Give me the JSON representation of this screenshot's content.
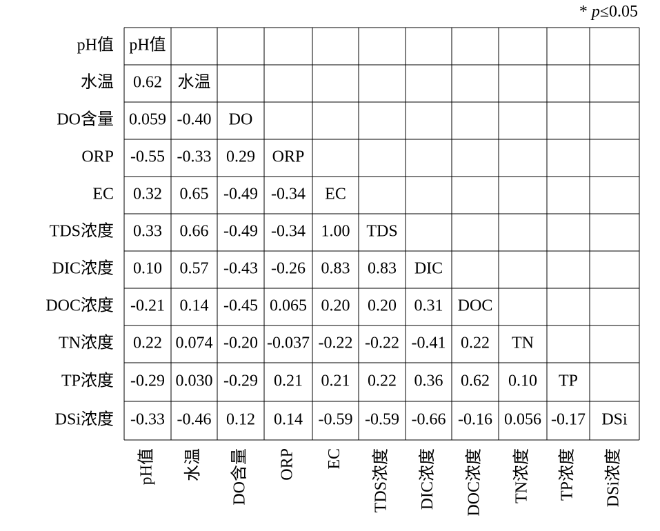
{
  "note": {
    "star": "*",
    "symbol": "p",
    "text": "≤0.05"
  },
  "table": {
    "column_labels": [
      "pH值",
      "水温",
      "DO含量",
      "ORP",
      "EC",
      "TDS浓度",
      "DIC浓度",
      "DOC浓度",
      "TN浓度",
      "TP浓度",
      "DSi浓度"
    ],
    "rows": [
      {
        "label": "pH值",
        "cells": [
          "pH值"
        ]
      },
      {
        "label": "水温",
        "cells": [
          "0.62",
          "水温"
        ]
      },
      {
        "label": "DO含量",
        "cells": [
          "0.059",
          "-0.40",
          "DO"
        ]
      },
      {
        "label": "ORP",
        "cells": [
          "-0.55",
          "-0.33",
          "0.29",
          "ORP"
        ]
      },
      {
        "label": "EC",
        "cells": [
          "0.32",
          "0.65",
          "-0.49",
          "-0.34",
          "EC"
        ]
      },
      {
        "label": "TDS浓度",
        "cells": [
          "0.33",
          "0.66",
          "-0.49",
          "-0.34",
          "1.00",
          "TDS"
        ]
      },
      {
        "label": "DIC浓度",
        "cells": [
          "0.10",
          "0.57",
          "-0.43",
          "-0.26",
          "0.83",
          "0.83",
          "DIC"
        ]
      },
      {
        "label": "DOC浓度",
        "cells": [
          "-0.21",
          "0.14",
          "-0.45",
          "0.065",
          "0.20",
          "0.20",
          "0.31",
          "DOC"
        ]
      },
      {
        "label": "TN浓度",
        "cells": [
          "0.22",
          "0.074",
          "-0.20",
          "-0.037",
          "-0.22",
          "-0.22",
          "-0.41",
          "0.22",
          "TN"
        ]
      },
      {
        "label": "TP浓度",
        "cells": [
          "-0.29",
          "0.030",
          "-0.29",
          "0.21",
          "0.21",
          "0.22",
          "0.36",
          "0.62",
          "0.10",
          "TP"
        ]
      },
      {
        "label": "DSi浓度",
        "cells": [
          "-0.33",
          "-0.46",
          "0.12",
          "0.14",
          "-0.59",
          "-0.59",
          "-0.66",
          "-0.16",
          "0.056",
          "-0.17",
          "DSi"
        ]
      }
    ]
  }
}
